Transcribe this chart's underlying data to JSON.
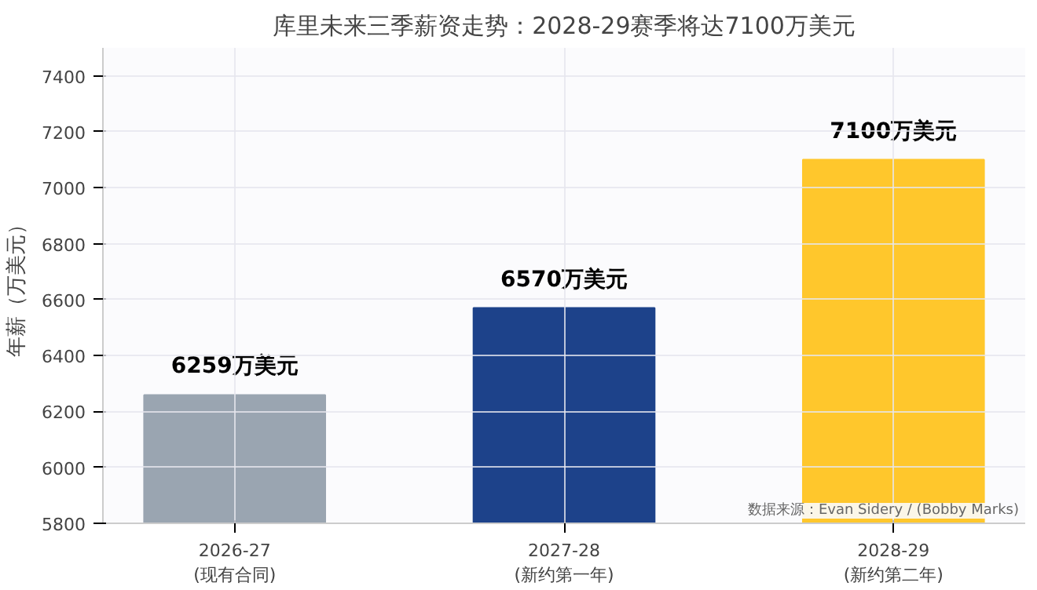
{
  "chart_data": {
    "type": "bar",
    "title": "库里未来三季薪资走势：2028-29赛季将达7100万美元",
    "ylabel": "年薪（万美元）",
    "categories": [
      "2026-27\n(现有合同)",
      "2027-28\n(新约第一年)",
      "2028-29\n(新约第二年)"
    ],
    "values": [
      6259,
      6570,
      7100
    ],
    "colors": [
      "#9aa5b1",
      "#1d428a",
      "#ffc72c"
    ],
    "value_labels": [
      "6259万美元",
      "6570万美元",
      "7100万美元"
    ],
    "ylim": [
      5800,
      7500
    ],
    "yticks": [
      5800,
      6000,
      6200,
      6400,
      6600,
      6800,
      7000,
      7200,
      7400
    ],
    "grid": true,
    "annotations": [
      "数据来源：Evan Sidery / (Bobby Marks)"
    ]
  }
}
